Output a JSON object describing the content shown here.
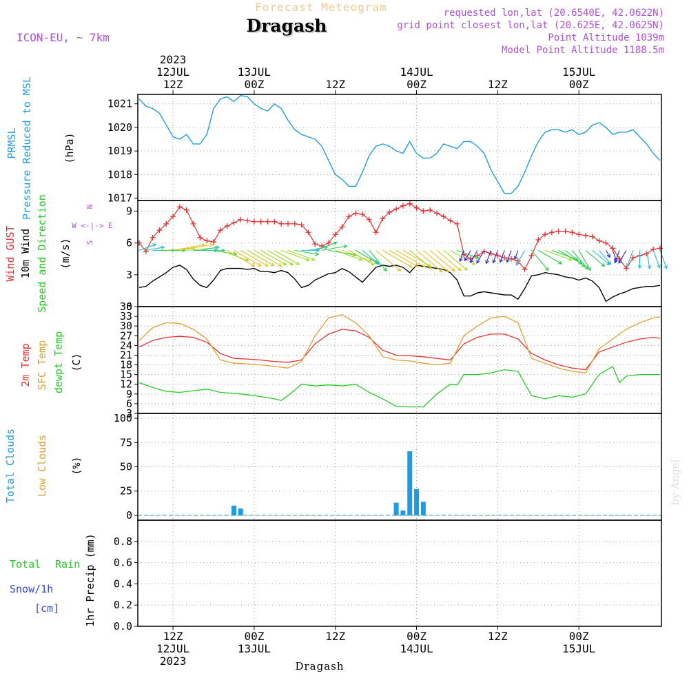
{
  "header": {
    "title_small": "Forecast Meteogram",
    "location": "Dragash",
    "model": "ICON-EU, ~ 7km",
    "requested": "requested lon,lat (20.6540E, 42.0622N)",
    "grid_point": "grid point closest lon,lat (20.625E, 42.0625N)",
    "point_altitude": "Point Altitude 1039m",
    "model_altitude": "Model Point Altitude 1188.5m",
    "footer_location": "Dragash",
    "credit": "by Angel"
  },
  "colors": {
    "pressure": "#1e9be6",
    "gust": "#e83030",
    "wind": "#000000",
    "temp2m": "#e83030",
    "sfctemp": "#e0a030",
    "dewpt": "#22cc22",
    "clouds_total": "#1e9be6",
    "clouds_low": "#e0a030",
    "rain": "#22cc22",
    "snow": "#3344ee",
    "meta": "#b050e0",
    "title_small": "#f0c890"
  },
  "chart_data": [
    {
      "type": "line",
      "panel": "pressure",
      "ylabel_lines": [
        "PRMSL",
        "Pressure Reduced to MSL"
      ],
      "unit": "(hPa)",
      "ylim": [
        1016.9,
        1021.4
      ],
      "yticks": [
        1017,
        1018,
        1019,
        1020,
        1021
      ],
      "series": [
        {
          "key": "pressure",
          "x": [
            0,
            1,
            2,
            3,
            4,
            5,
            6,
            7,
            8,
            9,
            10,
            11,
            12,
            13,
            14,
            15,
            16,
            17,
            18,
            19,
            20,
            21,
            22,
            23,
            24,
            25,
            26,
            27,
            28,
            29,
            30,
            31,
            32,
            33,
            34,
            35,
            36,
            37,
            38,
            39,
            40,
            41,
            42,
            43,
            44,
            45,
            46,
            47,
            48,
            49,
            50,
            51,
            52,
            53,
            54,
            55,
            56,
            57,
            58,
            59,
            60,
            61,
            62,
            63,
            64,
            65,
            66,
            67,
            68,
            69,
            70,
            71,
            72,
            73,
            74,
            75,
            76,
            77
          ],
          "values": [
            1021.2,
            1020.9,
            1020.8,
            1020.6,
            1020.1,
            1019.6,
            1019.5,
            1019.7,
            1019.3,
            1019.3,
            1019.7,
            1020.8,
            1021.2,
            1021.3,
            1021.1,
            1021.35,
            1021.3,
            1021.0,
            1020.8,
            1020.7,
            1021.0,
            1020.8,
            1020.3,
            1019.9,
            1019.7,
            1019.6,
            1019.5,
            1019.2,
            1018.6,
            1018.0,
            1017.8,
            1017.5,
            1017.5,
            1018.1,
            1018.8,
            1019.2,
            1019.3,
            1019.2,
            1019.0,
            1018.9,
            1019.4,
            1018.9,
            1018.7,
            1018.7,
            1018.9,
            1019.3,
            1019.2,
            1019.1,
            1019.4,
            1019.4,
            1019.2,
            1018.9,
            1018.2,
            1017.7,
            1017.2,
            1017.2,
            1017.5,
            1018.1,
            1018.8,
            1019.4,
            1019.8,
            1019.9,
            1019.9,
            1019.8,
            1019.9,
            1019.7,
            1019.8,
            1020.1,
            1020.2,
            1020.0,
            1019.7,
            1019.8,
            1019.8,
            1019.9,
            1019.6,
            1019.3,
            1018.9,
            1018.6
          ]
        }
      ]
    },
    {
      "type": "line",
      "panel": "wind",
      "ylabel_lines": [
        "Wind GUST",
        "10m Wind",
        "Speed and Direction"
      ],
      "unit": "(m/s)",
      "compass": [
        "N",
        "W <-|-> E",
        "S"
      ],
      "ylim": [
        0,
        10
      ],
      "yticks": [
        0,
        3,
        6,
        9
      ],
      "series": [
        {
          "key": "gust",
          "name": "Wind GUST",
          "x": [
            0,
            1,
            2,
            3,
            4,
            5,
            6,
            7,
            8,
            9,
            10,
            11,
            12,
            13,
            14,
            15,
            16,
            17,
            18,
            19,
            20,
            21,
            22,
            23,
            24,
            25,
            26,
            27,
            28,
            29,
            30,
            31,
            32,
            33,
            34,
            35,
            36,
            37,
            38,
            39,
            40,
            41,
            42,
            43,
            44,
            45,
            46,
            47,
            48,
            49,
            50,
            51,
            52,
            53,
            54,
            55,
            56,
            57,
            58,
            59,
            60,
            61,
            62,
            63,
            64,
            65,
            66,
            67,
            68,
            69,
            70,
            71,
            72,
            73,
            74,
            75,
            76,
            77
          ],
          "values": [
            6.0,
            5.2,
            6.5,
            7.2,
            7.8,
            8.5,
            9.4,
            9.1,
            7.8,
            6.5,
            6.2,
            6.1,
            7.2,
            7.6,
            7.9,
            8.2,
            8.1,
            8.0,
            8.0,
            8.0,
            8.0,
            7.8,
            7.8,
            7.8,
            7.7,
            7.0,
            5.9,
            5.7,
            6.0,
            6.8,
            7.5,
            8.5,
            8.8,
            8.7,
            8.2,
            7.0,
            8.3,
            8.9,
            9.2,
            9.5,
            9.7,
            9.3,
            9.0,
            9.1,
            8.8,
            8.5,
            8.1,
            7.8,
            4.9,
            4.5,
            4.8,
            5.2,
            5.0,
            4.8,
            4.6,
            4.5,
            4.3,
            3.5,
            4.8,
            6.3,
            6.8,
            7.0,
            7.1,
            7.1,
            7.0,
            6.8,
            6.7,
            6.6,
            6.2,
            6.0,
            5.5,
            4.5,
            3.6,
            4.6,
            4.8,
            5.0,
            5.4,
            5.5
          ]
        },
        {
          "key": "wind",
          "name": "10m Wind",
          "x": [
            0,
            1,
            2,
            3,
            4,
            5,
            6,
            7,
            8,
            9,
            10,
            11,
            12,
            13,
            14,
            15,
            16,
            17,
            18,
            19,
            20,
            21,
            22,
            23,
            24,
            25,
            26,
            27,
            28,
            29,
            30,
            31,
            32,
            33,
            34,
            35,
            36,
            37,
            38,
            39,
            40,
            41,
            42,
            43,
            44,
            45,
            46,
            47,
            48,
            49,
            50,
            51,
            52,
            53,
            54,
            55,
            56,
            57,
            58,
            59,
            60,
            61,
            62,
            63,
            64,
            65,
            66,
            67,
            68,
            69,
            70,
            71,
            72,
            73,
            74,
            75,
            76,
            77
          ],
          "values": [
            1.8,
            1.9,
            2.4,
            2.8,
            3.2,
            3.7,
            3.9,
            3.5,
            2.6,
            2.0,
            1.8,
            2.5,
            3.4,
            3.6,
            3.6,
            3.6,
            3.5,
            3.6,
            3.3,
            3.3,
            3.2,
            3.4,
            3.2,
            2.6,
            1.8,
            2.0,
            2.5,
            2.8,
            3.1,
            3.2,
            3.6,
            3.3,
            2.8,
            2.3,
            3.0,
            3.7,
            3.9,
            3.8,
            3.9,
            3.7,
            3.2,
            3.9,
            3.8,
            3.7,
            3.6,
            3.5,
            3.2,
            2.5,
            1.0,
            1.0,
            1.3,
            1.4,
            1.3,
            1.2,
            1.1,
            1.1,
            0.7,
            1.7,
            2.9,
            3.0,
            3.2,
            3.1,
            3.0,
            2.8,
            2.7,
            2.5,
            2.7,
            2.4,
            1.8,
            0.5,
            0.9,
            1.2,
            1.4,
            1.7,
            1.8,
            1.9,
            1.9,
            2.0
          ]
        }
      ],
      "wind_direction_deg": [
        70,
        80,
        90,
        90,
        85,
        80,
        80,
        85,
        90,
        80,
        90,
        100,
        110,
        120,
        120,
        120,
        120,
        120,
        120,
        120,
        120,
        110,
        110,
        100,
        90,
        80,
        70,
        80,
        100,
        110,
        110,
        120,
        120,
        130,
        140,
        130,
        120,
        120,
        120,
        120,
        130,
        130,
        130,
        130,
        130,
        130,
        120,
        110,
        200,
        210,
        210,
        210,
        200,
        200,
        200,
        200,
        200,
        210,
        140,
        120,
        110,
        110,
        120,
        130,
        140,
        150,
        130,
        130,
        140,
        150,
        160,
        200,
        210,
        200,
        180,
        170,
        160,
        160
      ]
    },
    {
      "type": "line",
      "panel": "temperature",
      "ylabel_lines": [
        "2m Temp",
        "SFC Temp",
        "dewpt Temp"
      ],
      "unit": "(C)",
      "ylim": [
        3,
        36
      ],
      "yticks": [
        3,
        6,
        9,
        12,
        15,
        18,
        21,
        24,
        27,
        30,
        33,
        36
      ],
      "series": [
        {
          "key": "temp2m",
          "name": "2m Temp",
          "x": [
            0,
            2,
            4,
            6,
            8,
            10,
            12,
            14,
            16,
            18,
            20,
            22,
            24,
            26,
            28,
            30,
            32,
            34,
            36,
            38,
            40,
            42,
            44,
            46,
            48,
            50,
            52,
            54,
            56,
            58,
            60,
            62,
            64,
            66,
            68,
            70,
            72,
            74,
            76,
            77
          ],
          "values": [
            23.5,
            25.5,
            26.5,
            26.8,
            26.5,
            25.0,
            21.5,
            20.0,
            19.8,
            19.5,
            19.0,
            18.8,
            19.5,
            24.5,
            27.5,
            29.0,
            28.5,
            26.5,
            22.5,
            21.0,
            20.8,
            20.5,
            20.0,
            19.5,
            24.5,
            26.5,
            27.5,
            27.5,
            26.0,
            21.5,
            19.5,
            18.0,
            17.0,
            16.5,
            22.0,
            23.5,
            25.0,
            26.0,
            26.5,
            26.2
          ]
        },
        {
          "key": "sfctemp",
          "name": "SFC Temp",
          "x": [
            0,
            2,
            4,
            6,
            8,
            10,
            12,
            14,
            16,
            18,
            20,
            22,
            24,
            26,
            28,
            30,
            32,
            34,
            36,
            38,
            40,
            42,
            44,
            46,
            48,
            50,
            52,
            54,
            56,
            58,
            60,
            62,
            64,
            66,
            68,
            70,
            72,
            74,
            76,
            77
          ],
          "values": [
            25.5,
            29.5,
            31.0,
            30.8,
            29.0,
            26.0,
            19.5,
            18.5,
            18.3,
            18.0,
            17.5,
            17.0,
            19.0,
            27.0,
            32.5,
            33.5,
            31.0,
            27.0,
            20.5,
            19.5,
            19.2,
            18.5,
            18.0,
            18.5,
            27.0,
            30.0,
            32.5,
            33.0,
            31.0,
            20.0,
            18.5,
            17.0,
            16.0,
            15.5,
            23.0,
            26.0,
            29.0,
            31.0,
            32.5,
            32.8
          ]
        },
        {
          "key": "dewpt",
          "name": "dewpt Temp",
          "x": [
            0,
            2,
            4,
            6,
            8,
            10,
            12,
            14,
            16,
            18,
            20,
            21,
            22,
            24,
            26,
            28,
            30,
            32,
            34,
            36,
            38,
            40,
            42,
            44,
            46,
            47,
            48,
            50,
            52,
            54,
            56,
            58,
            60,
            62,
            64,
            66,
            68,
            70,
            71,
            72,
            74,
            76,
            77
          ],
          "values": [
            12.5,
            11.0,
            9.8,
            9.5,
            10.0,
            10.5,
            9.5,
            9.2,
            8.8,
            8.2,
            7.5,
            7.0,
            8.5,
            12.0,
            11.5,
            11.8,
            11.5,
            12.0,
            9.5,
            7.5,
            5.2,
            5.0,
            5.0,
            9.0,
            12.0,
            11.8,
            15.0,
            15.0,
            15.5,
            16.5,
            16.0,
            8.5,
            7.5,
            8.5,
            8.0,
            9.0,
            15.0,
            17.5,
            12.5,
            14.5,
            15.0,
            15.0,
            15.0
          ]
        }
      ]
    },
    {
      "type": "bar",
      "panel": "clouds",
      "ylabel_lines": [
        "Total Clouds",
        "Low Clouds"
      ],
      "unit": "(%)",
      "ylim": [
        -5,
        105
      ],
      "yticks": [
        0,
        25,
        50,
        75,
        100
      ],
      "series": [
        {
          "key": "clouds_total",
          "name": "Total Clouds",
          "x": [
            14,
            15,
            38,
            39,
            40,
            41,
            42
          ],
          "values": [
            10,
            7,
            13,
            5,
            66,
            27,
            14
          ]
        }
      ]
    },
    {
      "type": "bar",
      "panel": "precip",
      "ylabel_lines": [
        "Total",
        "Rain",
        "Snow/1h",
        "[cm]"
      ],
      "unit": "1hr Precip (mm)",
      "ylim": [
        0,
        1.0
      ],
      "yticks": [
        0,
        0.2,
        0.4,
        0.6,
        0.8
      ],
      "series": [
        {
          "key": "rain",
          "name": "Total Rain",
          "x": [],
          "values": []
        }
      ]
    }
  ],
  "time_axis": {
    "top_year": "2023",
    "top_labels": [
      {
        "x": 5,
        "lines": [
          "12JUL",
          "12Z"
        ]
      },
      {
        "x": 17,
        "lines": [
          "13JUL",
          "00Z"
        ]
      },
      {
        "x": 29,
        "lines": [
          "12Z"
        ]
      },
      {
        "x": 41,
        "lines": [
          "14JUL",
          "00Z"
        ]
      },
      {
        "x": 53,
        "lines": [
          "12Z"
        ]
      },
      {
        "x": 65,
        "lines": [
          "15JUL",
          "00Z"
        ]
      }
    ],
    "bottom_labels": [
      {
        "x": 5,
        "lines": [
          "12Z",
          "12JUL",
          "2023"
        ]
      },
      {
        "x": 17,
        "lines": [
          "00Z",
          "13JUL"
        ]
      },
      {
        "x": 29,
        "lines": [
          "12Z"
        ]
      },
      {
        "x": 41,
        "lines": [
          "00Z",
          "14JUL"
        ]
      },
      {
        "x": 53,
        "lines": [
          "12Z"
        ]
      },
      {
        "x": 65,
        "lines": [
          "00Z",
          "15JUL"
        ]
      }
    ],
    "xlim": [
      0,
      77
    ]
  }
}
